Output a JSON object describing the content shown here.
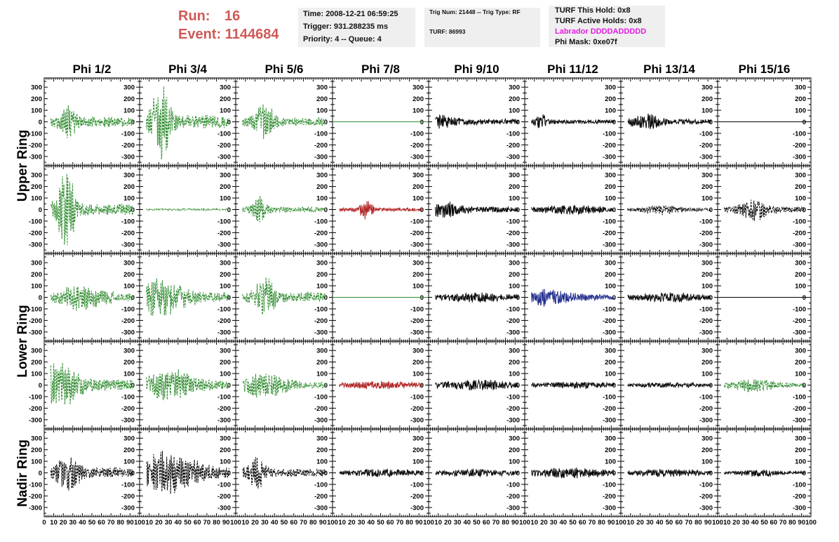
{
  "header": {
    "run_label": "Run:",
    "run_value": "16",
    "event_label": "Event:",
    "event_value": "1144684",
    "time": "Time: 2008-12-21 06:59:25",
    "trigger": "Trigger: 931.288235 ms",
    "priority": "Priority: 4 -- Queue: 4",
    "trig_num": "Trig Num: 21448 -- Trig Type: RF",
    "turf": "TURF: 86993",
    "turf_this_hold": "TURF This Hold: 0x8",
    "turf_active_holds": "TURF Active Holds: 0x8",
    "labrador": "Labrador DDDDADDDDD",
    "phi_mask": "Phi Mask: 0xe07f"
  },
  "colors": {
    "header_red": "#cf5a56",
    "magenta": "#e21de0",
    "green": "#2e8b2e",
    "red": "#b02020",
    "blue": "#1e2a8c",
    "black": "#000000"
  },
  "chart_data": {
    "type": "line",
    "title": "",
    "columns": [
      "Phi 1/2",
      "Phi 3/4",
      "Phi 5/6",
      "Phi 7/8",
      "Phi 9/10",
      "Phi 11/12",
      "Phi 13/14",
      "Phi 15/16"
    ],
    "ring_labels": [
      "Upper Ring",
      "Lower Ring",
      "Nadir Ring"
    ],
    "rows": 5,
    "ylim": [
      -380,
      380
    ],
    "yticks": [
      -300,
      -200,
      -100,
      0,
      100,
      200,
      300
    ],
    "xlim": [
      0,
      100
    ],
    "xticks": [
      0,
      10,
      20,
      30,
      40,
      50,
      60,
      70,
      80,
      90,
      100
    ],
    "xtick_labels": [
      "0",
      "10",
      "20",
      "30",
      "40",
      "50",
      "60",
      "70",
      "80",
      "90",
      "100"
    ],
    "grid": false,
    "panels": [
      [
        {
          "color": "green",
          "style": "dashed",
          "peak": 140,
          "center": 25,
          "width": 8,
          "noise": 45
        },
        {
          "color": "green",
          "style": "dashed",
          "peak": 320,
          "center": 23,
          "width": 10,
          "noise": 60
        },
        {
          "color": "green",
          "style": "dashed",
          "peak": 150,
          "center": 30,
          "width": 10,
          "noise": 40
        },
        {
          "color": "green",
          "style": "solid",
          "peak": 0,
          "center": 50,
          "width": 10,
          "noise": 0
        },
        {
          "color": "black",
          "style": "solid",
          "peak": 40,
          "center": 10,
          "width": 20,
          "noise": 25
        },
        {
          "color": "black",
          "style": "solid",
          "peak": 60,
          "center": 17,
          "width": 6,
          "noise": 20
        },
        {
          "color": "black",
          "style": "solid",
          "peak": 50,
          "center": 27,
          "width": 15,
          "noise": 25
        },
        {
          "color": "black",
          "style": "solid",
          "peak": 0,
          "center": 50,
          "width": 10,
          "noise": 0
        }
      ],
      [
        {
          "color": "green",
          "style": "dashed",
          "peak": 320,
          "center": 23,
          "width": 9,
          "noise": 50
        },
        {
          "color": "green",
          "style": "dashed",
          "peak": 5,
          "center": 50,
          "width": 40,
          "noise": 5
        },
        {
          "color": "green",
          "style": "dashed",
          "peak": 100,
          "center": 25,
          "width": 8,
          "noise": 25
        },
        {
          "color": "red",
          "style": "solid",
          "peak": 75,
          "center": 35,
          "width": 7,
          "noise": 15
        },
        {
          "color": "black",
          "style": "solid",
          "peak": 50,
          "center": 15,
          "width": 20,
          "noise": 25
        },
        {
          "color": "black",
          "style": "solid",
          "peak": 30,
          "center": 50,
          "width": 40,
          "noise": 15
        },
        {
          "color": "black",
          "style": "dashed",
          "peak": 35,
          "center": 40,
          "width": 20,
          "noise": 15
        },
        {
          "color": "black",
          "style": "dashed",
          "peak": 80,
          "center": 40,
          "width": 15,
          "noise": 25
        }
      ],
      [
        {
          "color": "green",
          "style": "dashed",
          "peak": 90,
          "center": 40,
          "width": 25,
          "noise": 35
        },
        {
          "color": "green",
          "style": "dashed",
          "peak": 130,
          "center": 20,
          "width": 30,
          "noise": 45
        },
        {
          "color": "green",
          "style": "dashed",
          "peak": 150,
          "center": 30,
          "width": 10,
          "noise": 45
        },
        {
          "color": "green",
          "style": "solid",
          "peak": 0,
          "center": 50,
          "width": 10,
          "noise": 0
        },
        {
          "color": "black",
          "style": "solid",
          "peak": 30,
          "center": 50,
          "width": 40,
          "noise": 15
        },
        {
          "color": "blue",
          "style": "solid",
          "peak": 60,
          "center": 25,
          "width": 25,
          "noise": 25
        },
        {
          "color": "black",
          "style": "solid",
          "peak": 30,
          "center": 50,
          "width": 40,
          "noise": 15
        },
        {
          "color": "black",
          "style": "solid",
          "peak": 0,
          "center": 50,
          "width": 10,
          "noise": 0
        }
      ],
      [
        {
          "color": "green",
          "style": "dashed",
          "peak": 170,
          "center": 15,
          "width": 20,
          "noise": 55
        },
        {
          "color": "green",
          "style": "dashed",
          "peak": 120,
          "center": 30,
          "width": 25,
          "noise": 40
        },
        {
          "color": "green",
          "style": "dashed",
          "peak": 90,
          "center": 30,
          "width": 25,
          "noise": 30
        },
        {
          "color": "red",
          "style": "solid",
          "peak": 25,
          "center": 50,
          "width": 40,
          "noise": 12
        },
        {
          "color": "black",
          "style": "solid",
          "peak": 35,
          "center": 50,
          "width": 40,
          "noise": 15
        },
        {
          "color": "black",
          "style": "solid",
          "peak": 20,
          "center": 50,
          "width": 40,
          "noise": 12
        },
        {
          "color": "black",
          "style": "solid",
          "peak": 15,
          "center": 50,
          "width": 40,
          "noise": 10
        },
        {
          "color": "green",
          "style": "dashed",
          "peak": 50,
          "center": 40,
          "width": 20,
          "noise": 20
        }
      ],
      [
        {
          "color": "black",
          "style": "dashed",
          "peak": 130,
          "center": 25,
          "width": 12,
          "noise": 45
        },
        {
          "color": "black",
          "style": "dashed",
          "peak": 160,
          "center": 30,
          "width": 30,
          "noise": 50
        },
        {
          "color": "black",
          "style": "dashed",
          "peak": 110,
          "center": 22,
          "width": 10,
          "noise": 35
        },
        {
          "color": "black",
          "style": "solid",
          "peak": 25,
          "center": 50,
          "width": 40,
          "noise": 12
        },
        {
          "color": "black",
          "style": "solid",
          "peak": 25,
          "center": 50,
          "width": 40,
          "noise": 12
        },
        {
          "color": "black",
          "style": "solid",
          "peak": 35,
          "center": 50,
          "width": 40,
          "noise": 15
        },
        {
          "color": "black",
          "style": "solid",
          "peak": 25,
          "center": 50,
          "width": 40,
          "noise": 12
        },
        {
          "color": "black",
          "style": "solid",
          "peak": 25,
          "center": 45,
          "width": 20,
          "noise": 12
        }
      ]
    ]
  }
}
